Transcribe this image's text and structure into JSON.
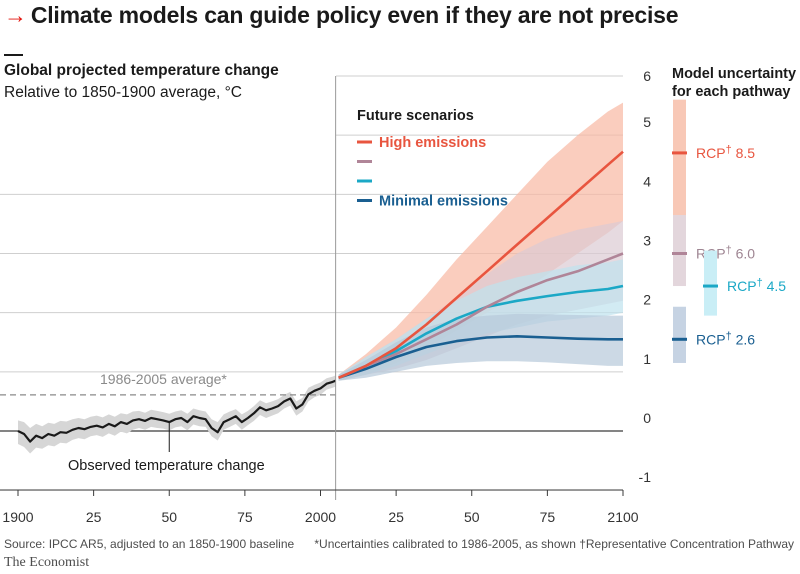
{
  "headline": {
    "arrow": "→",
    "text": "Climate models can guide policy even if they are not precise"
  },
  "chart_data": {
    "type": "line",
    "title": "Global projected temperature change",
    "subtitle": "Relative to 1850-1900 average, °C",
    "xlim": [
      1900,
      2100
    ],
    "ylim": [
      -1,
      6
    ],
    "x_ticks": [
      "1900",
      "25",
      "50",
      "75",
      "2000",
      "25",
      "50",
      "75",
      "2100"
    ],
    "x_tick_values": [
      1900,
      1925,
      1950,
      1975,
      2000,
      2025,
      2050,
      2075,
      2100
    ],
    "y_ticks": [
      "6",
      "5",
      "4",
      "3",
      "2",
      "1",
      "0",
      "-1"
    ],
    "y_tick_values": [
      6,
      5,
      4,
      3,
      2,
      1,
      0,
      -1
    ],
    "grid": true,
    "reference_line": {
      "label": "1986-2005 average*",
      "y": 0.61
    },
    "observed": {
      "label": "Observed temperature change",
      "x": [
        1900,
        1902,
        1904,
        1906,
        1908,
        1910,
        1912,
        1914,
        1916,
        1918,
        1920,
        1922,
        1924,
        1926,
        1928,
        1930,
        1932,
        1934,
        1936,
        1938,
        1940,
        1942,
        1944,
        1946,
        1948,
        1950,
        1952,
        1954,
        1956,
        1958,
        1960,
        1962,
        1964,
        1966,
        1968,
        1970,
        1972,
        1974,
        1976,
        1978,
        1980,
        1982,
        1984,
        1986,
        1988,
        1990,
        1992,
        1994,
        1996,
        1998,
        2000,
        2002,
        2004,
        2005
      ],
      "y": [
        0.0,
        -0.05,
        -0.18,
        -0.08,
        -0.12,
        -0.05,
        -0.08,
        -0.02,
        -0.03,
        0.02,
        0.05,
        0.03,
        0.07,
        0.09,
        0.06,
        0.12,
        0.08,
        0.15,
        0.12,
        0.18,
        0.2,
        0.17,
        0.22,
        0.2,
        0.18,
        0.15,
        0.2,
        0.22,
        0.15,
        0.25,
        0.22,
        0.2,
        0.05,
        -0.02,
        0.15,
        0.2,
        0.25,
        0.15,
        0.22,
        0.3,
        0.4,
        0.35,
        0.38,
        0.42,
        0.5,
        0.55,
        0.38,
        0.45,
        0.62,
        0.68,
        0.72,
        0.8,
        0.83,
        0.85
      ],
      "upper": [
        0.18,
        0.15,
        0.05,
        0.12,
        0.08,
        0.14,
        0.12,
        0.17,
        0.16,
        0.2,
        0.22,
        0.2,
        0.24,
        0.26,
        0.23,
        0.28,
        0.24,
        0.3,
        0.28,
        0.33,
        0.34,
        0.31,
        0.36,
        0.34,
        0.32,
        0.29,
        0.33,
        0.35,
        0.29,
        0.38,
        0.35,
        0.33,
        0.2,
        0.15,
        0.28,
        0.33,
        0.37,
        0.28,
        0.34,
        0.42,
        0.52,
        0.47,
        0.5,
        0.54,
        0.61,
        0.66,
        0.5,
        0.56,
        0.73,
        0.78,
        0.82,
        0.89,
        0.92,
        0.94
      ],
      "lower": [
        -0.22,
        -0.27,
        -0.38,
        -0.28,
        -0.3,
        -0.24,
        -0.26,
        -0.2,
        -0.21,
        -0.15,
        -0.12,
        -0.14,
        -0.09,
        -0.07,
        -0.1,
        -0.04,
        -0.08,
        -0.01,
        -0.04,
        0.02,
        0.05,
        0.02,
        0.07,
        0.05,
        0.04,
        0.01,
        0.06,
        0.08,
        0.01,
        0.11,
        0.08,
        0.07,
        -0.09,
        -0.16,
        0.02,
        0.07,
        0.12,
        0.02,
        0.1,
        0.17,
        0.27,
        0.22,
        0.26,
        0.3,
        0.38,
        0.43,
        0.26,
        0.33,
        0.5,
        0.57,
        0.61,
        0.7,
        0.73,
        0.75
      ]
    },
    "legend_title": "Future scenarios",
    "scenarios": [
      {
        "name": "High emissions",
        "label": "High emissions",
        "color": "#e8553f",
        "band_color": "#f8b8a3",
        "x": [
          2006,
          2015,
          2025,
          2035,
          2045,
          2055,
          2065,
          2075,
          2085,
          2095,
          2100
        ],
        "y": [
          0.9,
          1.1,
          1.4,
          1.8,
          2.25,
          2.7,
          3.15,
          3.6,
          4.05,
          4.5,
          4.72
        ],
        "upper": [
          0.95,
          1.3,
          1.75,
          2.3,
          2.9,
          3.45,
          4.0,
          4.55,
          5.0,
          5.4,
          5.55
        ],
        "lower": [
          0.85,
          0.95,
          1.15,
          1.4,
          1.7,
          2.0,
          2.3,
          2.65,
          3.0,
          3.35,
          3.55
        ]
      },
      {
        "name": "RCP 6.0",
        "label": "",
        "color": "#b08598",
        "band_color": "#dccbd3",
        "x": [
          2006,
          2015,
          2025,
          2035,
          2045,
          2055,
          2065,
          2075,
          2085,
          2095,
          2100
        ],
        "y": [
          0.9,
          1.1,
          1.3,
          1.55,
          1.8,
          2.1,
          2.35,
          2.55,
          2.7,
          2.9,
          3.0
        ],
        "upper": [
          0.95,
          1.25,
          1.55,
          1.9,
          2.25,
          2.65,
          3.0,
          3.25,
          3.4,
          3.5,
          3.55
        ],
        "lower": [
          0.85,
          0.95,
          1.05,
          1.2,
          1.4,
          1.6,
          1.8,
          1.95,
          2.05,
          2.15,
          2.2
        ]
      },
      {
        "name": "RCP 4.5",
        "label": "",
        "color": "#1ba8c6",
        "band_color": "#bfe3ee",
        "x": [
          2006,
          2015,
          2025,
          2035,
          2045,
          2055,
          2065,
          2075,
          2085,
          2095,
          2100
        ],
        "y": [
          0.9,
          1.1,
          1.35,
          1.65,
          1.9,
          2.1,
          2.2,
          2.28,
          2.35,
          2.4,
          2.45
        ],
        "upper": [
          0.95,
          1.25,
          1.55,
          1.9,
          2.2,
          2.45,
          2.6,
          2.7,
          2.8,
          2.85,
          2.9
        ],
        "lower": [
          0.85,
          0.95,
          1.1,
          1.3,
          1.5,
          1.65,
          1.75,
          1.85,
          1.9,
          1.95,
          2.0
        ]
      },
      {
        "name": "Minimal emissions",
        "label": "Minimal emissions",
        "color": "#1a5f91",
        "band_color": "#b6c9da",
        "x": [
          2006,
          2015,
          2025,
          2035,
          2045,
          2055,
          2065,
          2075,
          2085,
          2095,
          2100
        ],
        "y": [
          0.9,
          1.05,
          1.25,
          1.42,
          1.52,
          1.58,
          1.6,
          1.58,
          1.56,
          1.55,
          1.55
        ],
        "upper": [
          0.95,
          1.2,
          1.5,
          1.75,
          1.9,
          1.95,
          1.98,
          1.97,
          1.96,
          1.95,
          1.95
        ],
        "lower": [
          0.85,
          0.9,
          1.0,
          1.1,
          1.15,
          1.18,
          1.18,
          1.16,
          1.13,
          1.1,
          1.1
        ]
      }
    ],
    "uncertainty_panel": {
      "title_line1": "Model uncertainty",
      "title_line2": "for each pathway",
      "bars": [
        {
          "label": "RCP",
          "dagger": "†",
          "value": "8.5",
          "center": 4.7,
          "low": 3.2,
          "high": 5.6,
          "color": "#e8553f",
          "fill": "#f8c8b6",
          "text_color": "#e8553f"
        },
        {
          "label": "RCP",
          "dagger": "†",
          "value": "6.0",
          "center": 3.0,
          "low": 2.45,
          "high": 3.65,
          "color": "#b08598",
          "fill": "#e3d6dc",
          "text_color": "#9e8592"
        },
        {
          "label": "RCP",
          "dagger": "†",
          "value": "4.5",
          "center": 2.45,
          "low": 1.95,
          "high": 3.05,
          "color": "#1ba8c6",
          "fill": "#c9eef6",
          "text_color": "#1ba8c6"
        },
        {
          "label": "RCP",
          "dagger": "†",
          "value": "2.6",
          "center": 1.55,
          "low": 1.15,
          "high": 2.1,
          "color": "#1a5f91",
          "fill": "#c6d3e3",
          "text_color": "#1a5f91"
        }
      ]
    }
  },
  "footer": {
    "source": "Source: IPCC AR5, adjusted to an 1850-1900 baseline",
    "footnote": "*Uncertainties calibrated to 1986-2005, as shown †Representative Concentration Pathway",
    "brand": "The Economist"
  }
}
